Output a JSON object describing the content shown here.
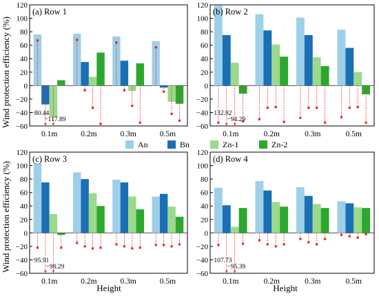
{
  "figure": {
    "ylabel": "Wind protection efficiency (%)",
    "xlabel": "Height",
    "colors": {
      "An": "#9ecfe8",
      "Bn": "#1a6fb5",
      "Zn-1": "#9bd98c",
      "Zn-2": "#2da82e",
      "marker": "#e8262a"
    }
  },
  "legend": {
    "items": [
      "An",
      "Bn",
      "Zn-1",
      "Zn-2"
    ]
  },
  "chart_data": [
    {
      "type": "bar",
      "title": "(a) Row 1",
      "categories": [
        "0.1m",
        "0.2m",
        "0.3m",
        "0.5m"
      ],
      "ylim": [
        -60,
        120
      ],
      "yticks": [
        -60,
        -40,
        -20,
        0,
        20,
        40,
        60,
        80,
        100,
        120
      ],
      "series": [
        {
          "name": "An",
          "values": [
            76,
            77,
            73,
            66
          ]
        },
        {
          "name": "Bn",
          "values": [
            -28,
            35,
            37,
            -3
          ]
        },
        {
          "name": "Zn-1",
          "values": [
            -47,
            13,
            -8,
            -24
          ]
        },
        {
          "name": "Zn-2",
          "values": [
            8,
            49,
            33,
            -27
          ]
        }
      ],
      "markers": [
        {
          "series": "An",
          "values": [
            67,
            68,
            64,
            57
          ]
        },
        {
          "series": "Bn",
          "values": [
            -80.44,
            -7,
            -7,
            -9
          ]
        },
        {
          "series": "Zn-1",
          "values": [
            -117.89,
            -33,
            -30,
            -42
          ]
        },
        {
          "series": "Zn-2",
          "values": [
            null,
            -57,
            -55,
            -52
          ]
        }
      ],
      "annotations": [
        "−80.44",
        "−117.89"
      ]
    },
    {
      "type": "bar",
      "title": "(b) Row 2",
      "categories": [
        "0.1m",
        "0.2m",
        "0.3m",
        "0.5m"
      ],
      "ylim": [
        -60,
        120
      ],
      "yticks": [
        -60,
        -40,
        -20,
        0,
        20,
        40,
        60,
        80,
        100,
        120
      ],
      "series": [
        {
          "name": "An",
          "values": [
            119,
            106,
            101,
            83
          ]
        },
        {
          "name": "Bn",
          "values": [
            75,
            82,
            75,
            56
          ]
        },
        {
          "name": "Zn-1",
          "values": [
            34,
            61,
            42,
            20
          ]
        },
        {
          "name": "Zn-2",
          "values": [
            -12,
            43,
            29,
            -13
          ]
        }
      ],
      "markers": [
        {
          "series": "An",
          "values": [
            -55,
            -50,
            -48,
            -47
          ]
        },
        {
          "series": "Bn",
          "values": [
            -132.92,
            -33,
            -33,
            -33
          ]
        },
        {
          "series": "Zn-1",
          "values": [
            -94.29,
            -32,
            -33,
            -32
          ]
        },
        {
          "series": "Zn-2",
          "values": [
            -53,
            -54,
            -55,
            -55
          ]
        }
      ],
      "annotations": [
        "−132.92",
        "−94.29"
      ]
    },
    {
      "type": "bar",
      "title": "(c) Row 3",
      "categories": [
        "0.1m",
        "0.2m",
        "0.3m",
        "0.5m"
      ],
      "ylim": [
        -60,
        120
      ],
      "yticks": [
        -60,
        -40,
        -20,
        0,
        20,
        40,
        60,
        80,
        100,
        120
      ],
      "series": [
        {
          "name": "An",
          "values": [
            104,
            90,
            79,
            54
          ]
        },
        {
          "name": "Bn",
          "values": [
            75,
            80,
            75,
            58
          ]
        },
        {
          "name": "Zn-1",
          "values": [
            28,
            59,
            54,
            39
          ]
        },
        {
          "name": "Zn-2",
          "values": [
            -3,
            40,
            35,
            24
          ]
        }
      ],
      "markers": [
        {
          "series": "An",
          "values": [
            -22,
            -15,
            -17,
            -18
          ]
        },
        {
          "series": "Bn",
          "values": [
            -95.91,
            -20,
            -20,
            -18
          ]
        },
        {
          "series": "Zn-1",
          "values": [
            -98.29,
            -23,
            -23,
            -20
          ]
        },
        {
          "series": "Zn-2",
          "values": [
            -22,
            -22,
            -22,
            -17
          ]
        }
      ],
      "annotations": [
        "−95.91",
        "−98.29"
      ]
    },
    {
      "type": "bar",
      "title": "(d) Row 4",
      "categories": [
        "0.1m",
        "0.2m",
        "0.3m",
        "0.5m"
      ],
      "ylim": [
        -60,
        120
      ],
      "yticks": [
        -60,
        -40,
        -20,
        0,
        20,
        40,
        60,
        80,
        100,
        120
      ],
      "series": [
        {
          "name": "An",
          "values": [
            67,
            77,
            68,
            47
          ]
        },
        {
          "name": "Bn",
          "values": [
            41,
            63,
            55,
            44
          ]
        },
        {
          "name": "Zn-1",
          "values": [
            9,
            46,
            43,
            38
          ]
        },
        {
          "name": "Zn-2",
          "values": [
            37,
            39,
            37,
            37
          ]
        }
      ],
      "markers": [
        {
          "series": "An",
          "values": [
            -18,
            -11,
            -9,
            -3
          ]
        },
        {
          "series": "Bn",
          "values": [
            -107.73,
            -17,
            -14,
            -5
          ]
        },
        {
          "series": "Zn-1",
          "values": [
            -95.39,
            -20,
            -17,
            -7
          ]
        },
        {
          "series": "Zn-2",
          "values": [
            -16,
            -17,
            -9,
            -2
          ]
        }
      ],
      "annotations": [
        "−107.73",
        "−95.39"
      ]
    }
  ]
}
